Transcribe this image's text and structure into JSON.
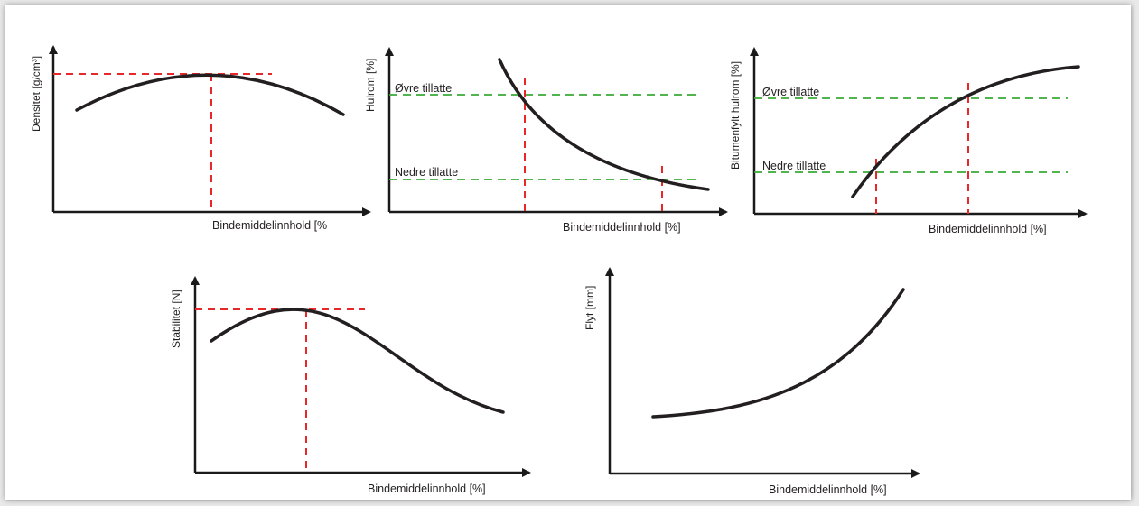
{
  "charts": {
    "densitet": {
      "ylabel": "Densitet [g/cm³]",
      "xlabel": "Bindemiddelinnhold [%"
    },
    "hulrom": {
      "ylabel": "Hulrom [%]",
      "xlabel": "Bindemiddelinnhold [%]",
      "upper_limit": "Øvre tillatte",
      "lower_limit": "Nedre tillatte"
    },
    "bitumenfylt": {
      "ylabel": "Bitumenfylt hulrom [%]",
      "xlabel": "Bindemiddelinnhold [%]",
      "upper_limit": "Øvre tillatte",
      "lower_limit": "Nedre tillatte"
    },
    "stabilitet": {
      "ylabel": "Stabilitet [N]",
      "xlabel": "Bindemiddelinnhold [%]"
    },
    "flyt": {
      "ylabel": "Flyt [mm]",
      "xlabel": "Bindemiddelinnhold [%]"
    }
  },
  "colors": {
    "curve": "#231f20",
    "optimum_guide": "#e8272a",
    "limit_guide": "#3aa935"
  }
}
